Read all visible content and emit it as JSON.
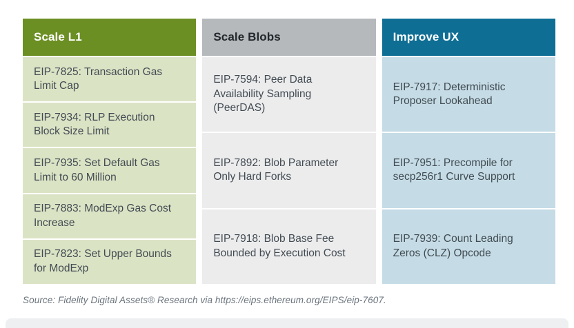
{
  "columns": [
    {
      "id": "scale-l1",
      "header": "Scale L1",
      "header_bg": "#6c8f23",
      "header_text_color": "#ffffff",
      "cell_bg": "#dbe3c5",
      "items": [
        "EIP-7825: Transaction Gas Limit Cap",
        "EIP-7934: RLP Execution Block Size Limit",
        "EIP-7935: Set Default Gas Limit to 60 Million",
        "EIP-7883: ModExp Gas Cost Increase",
        "EIP-7823: Set Upper Bounds for ModExp"
      ]
    },
    {
      "id": "scale-blobs",
      "header": "Scale Blobs",
      "header_bg": "#b5b9bc",
      "header_text_color": "#23282c",
      "cell_bg": "#ececed",
      "items": [
        "EIP-7594: Peer Data Availability Sampling (PeerDAS)",
        "EIP-7892: Blob Parameter Only Hard Forks",
        "EIP-7918: Blob Base Fee Bounded by Execution Cost"
      ]
    },
    {
      "id": "improve-ux",
      "header": "Improve UX",
      "header_bg": "#0e6e94",
      "header_text_color": "#ffffff",
      "cell_bg": "#c5dce6",
      "items": [
        "EIP-7917: Deterministic Proposer Lookahead",
        "EIP-7951: Precompile for secp256r1 Curve Support",
        "EIP-7939: Count Leading Zeros (CLZ) Opcode"
      ]
    }
  ],
  "source_note": "Source: Fidelity Digital Assets® Research via https://eips.ethereum.org/EIPS/eip-7607.",
  "colors": {
    "cell_text": "#424b52",
    "source_text": "#6a737c",
    "background": "#ffffff",
    "bottom_band": "#edeff0"
  }
}
